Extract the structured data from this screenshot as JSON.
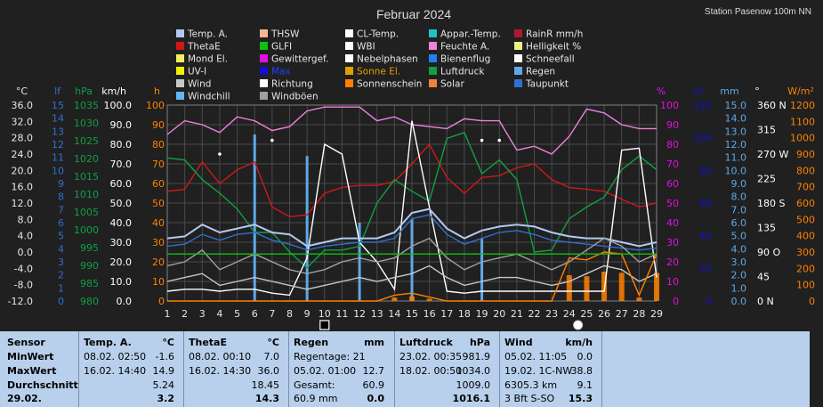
{
  "title": "Februar 2024",
  "station": "Station Pasenow  100m NN",
  "legend": [
    {
      "label": "Temp. A.",
      "color": "#b4c8f0"
    },
    {
      "label": "THSW",
      "color": "#f0b890"
    },
    {
      "label": "CL-Temp.",
      "color": "#ffffff"
    },
    {
      "label": "Appar.-Temp.",
      "color": "#20c0c0"
    },
    {
      "label": "RainR mm/h",
      "color": "#b01830"
    },
    {
      "label": "ThetaE",
      "color": "#d01818"
    },
    {
      "label": "GLFI",
      "color": "#10c010"
    },
    {
      "label": "WBI",
      "color": "#ffffff"
    },
    {
      "label": "Feuchte A.",
      "color": "#f080e0"
    },
    {
      "label": "Helligkeit %",
      "color": "#f0f080"
    },
    {
      "label": "Mond El.",
      "color": "#f0f060"
    },
    {
      "label": "Gewittergef.",
      "color": "#e010e0"
    },
    {
      "label": "Nebelphasen",
      "color": "#ffffff"
    },
    {
      "label": "Bienenflug",
      "color": "#2080f0"
    },
    {
      "label": "Schneefall",
      "color": "#ffffff"
    },
    {
      "label": "UV-I",
      "color": "#f0f000"
    },
    {
      "label": "Max",
      "color": "#1010d0"
    },
    {
      "label": "Sonne El.",
      "color": "#e0a000"
    },
    {
      "label": "Luftdruck",
      "color": "#10a040"
    },
    {
      "label": "Regen",
      "color": "#60a8e8"
    },
    {
      "label": "Wind",
      "color": "#c8c8c8"
    },
    {
      "label": "Richtung",
      "color": "#ffffff"
    },
    {
      "label": "Sonnenschein",
      "color": "#ff8000"
    },
    {
      "label": "Solar",
      "color": "#f08040"
    },
    {
      "label": "Taupunkt",
      "color": "#3070d0"
    },
    {
      "label": "Windchill",
      "color": "#60b8f0"
    },
    {
      "label": "Windböen",
      "color": "#a0a0a0"
    }
  ],
  "colors": {
    "temp": "#b4c8f0",
    "thetae": "#d01818",
    "pressure": "#10a040",
    "humidity": "#f080e0",
    "cl_temp": "#ffffff",
    "rain": "#60a8e8",
    "gust": "#a0a0a0",
    "wind": "#c8c8c8",
    "sunshine": "#ff8000",
    "dewpoint": "#3070d0",
    "glfi": "#10c010",
    "axis_hpa": "#10a040",
    "axis_km": "#ffffff",
    "axis_h": "#ff8000",
    "axis_pct": "#e010e0",
    "axis_rh": "#1010d0",
    "axis_mm": "#60a8e8",
    "axis_wm2": "#ff8000",
    "axis_lf": "#3070d0"
  },
  "chart_data": {
    "type": "line",
    "title": "Februar 2024",
    "x": [
      1,
      2,
      3,
      4,
      5,
      6,
      7,
      8,
      9,
      10,
      11,
      12,
      13,
      14,
      15,
      16,
      17,
      18,
      19,
      20,
      21,
      22,
      23,
      24,
      25,
      26,
      27,
      28,
      29
    ],
    "axes": {
      "celsius": {
        "label": "°C",
        "ticks": [
          "36.0",
          "32.0",
          "28.0",
          "24.0",
          "20.0",
          "16.0",
          "12.0",
          "8.0",
          "4.0",
          "0.0",
          "-4.0",
          "-8.0",
          "-12.0"
        ]
      },
      "lf": {
        "label": "lf",
        "ticks": [
          "15",
          "14",
          "13",
          "12",
          "11",
          "10",
          "9",
          "8",
          "7",
          "6",
          "5",
          "4",
          "3",
          "2",
          "1",
          "0"
        ]
      },
      "hpa": {
        "label": "hPa",
        "ticks": [
          "1035",
          "1030",
          "1025",
          "1020",
          "1015",
          "1010",
          "1005",
          "1000",
          "995",
          "990",
          "985",
          "980"
        ]
      },
      "kmh": {
        "label": "km/h",
        "ticks": [
          "100.0",
          "90.0",
          "80.0",
          "70.0",
          "60.0",
          "50.0",
          "40.0",
          "30.0",
          "20.0",
          "10.0",
          "0.0"
        ]
      },
      "h": {
        "label": "h",
        "ticks": [
          "100",
          "90",
          "80",
          "70",
          "60",
          "50",
          "40",
          "30",
          "20",
          "10",
          "0"
        ]
      },
      "pct": {
        "label": "%",
        "ticks": [
          "100",
          "90",
          "80",
          "70",
          "60",
          "50",
          "40",
          "30",
          "20",
          "10",
          "0"
        ]
      },
      "rh": {
        "label": "rh",
        "ticks": [
          "120",
          "100",
          "80",
          "60",
          "40",
          "20",
          "0"
        ]
      },
      "mm": {
        "label": "mm",
        "ticks": [
          "15.0",
          "14.0",
          "13.0",
          "12.0",
          "11.0",
          "10.0",
          "9.0",
          "8.0",
          "7.0",
          "6.0",
          "5.0",
          "4.0",
          "3.0",
          "2.0",
          "1.0",
          "0.0"
        ]
      },
      "deg": {
        "label": "°",
        "ticks": [
          "360 N",
          "315",
          "270 W",
          "225",
          "180 S",
          "135",
          "90 O",
          "45",
          "0   N"
        ]
      },
      "wm2": {
        "label": "W/m²",
        "ticks": [
          "1200",
          "1100",
          "1000",
          "900",
          "800",
          "700",
          "600",
          "500",
          "400",
          "300",
          "200",
          "100",
          "0"
        ]
      }
    },
    "ylim_h": [
      0,
      100
    ],
    "series": [
      {
        "name": "Feuchte A.",
        "key": "humidity",
        "values": [
          85,
          92,
          90,
          86,
          94,
          92,
          87,
          89,
          97,
          99,
          99,
          99,
          92,
          94,
          90,
          89,
          88,
          93,
          92,
          92,
          77,
          79,
          75,
          84,
          98,
          96,
          90,
          88,
          88
        ]
      },
      {
        "name": "ThetaE",
        "key": "thetae",
        "values": [
          56,
          57,
          71,
          60,
          67,
          71,
          48,
          43,
          44,
          55,
          58,
          59,
          59,
          61,
          70,
          80,
          63,
          55,
          63,
          64,
          68,
          70,
          62,
          58,
          57,
          56,
          52,
          48,
          50
        ]
      },
      {
        "name": "Luftdruck",
        "key": "pressure",
        "values": [
          73,
          72,
          62,
          55,
          47,
          35,
          35,
          25,
          17,
          26,
          26,
          28,
          50,
          62,
          56,
          51,
          83,
          86,
          65,
          72,
          62,
          25,
          26,
          42,
          48,
          53,
          67,
          74,
          67
        ]
      },
      {
        "name": "CL-Temp.",
        "key": "cl_temp",
        "values": [
          5,
          6,
          6,
          5,
          6,
          6,
          4,
          3,
          22,
          80,
          75,
          30,
          20,
          6,
          92,
          48,
          5,
          4,
          5,
          5,
          5,
          5,
          5,
          5,
          5,
          5,
          77,
          78,
          12
        ]
      },
      {
        "name": "Temp. A.",
        "key": "temp",
        "values": [
          32,
          33,
          39,
          35,
          37,
          39,
          35,
          34,
          28,
          30,
          32,
          32,
          32,
          35,
          45,
          47,
          37,
          32,
          36,
          38,
          39,
          38,
          35,
          33,
          32,
          32,
          30,
          28,
          30
        ]
      },
      {
        "name": "Taupunkt",
        "key": "dewpoint",
        "values": [
          28,
          29,
          34,
          31,
          34,
          35,
          31,
          29,
          26,
          28,
          29,
          30,
          30,
          32,
          42,
          44,
          34,
          29,
          32,
          35,
          36,
          34,
          31,
          30,
          29,
          28,
          27,
          26,
          27
        ]
      },
      {
        "name": "Wind",
        "key": "wind",
        "values": [
          10,
          12,
          14,
          8,
          10,
          12,
          10,
          8,
          6,
          8,
          10,
          12,
          10,
          12,
          14,
          18,
          12,
          8,
          10,
          12,
          12,
          10,
          8,
          10,
          14,
          18,
          16,
          10,
          14
        ]
      },
      {
        "name": "Windböen",
        "key": "gust",
        "values": [
          18,
          20,
          26,
          16,
          20,
          24,
          20,
          16,
          14,
          16,
          20,
          22,
          20,
          22,
          28,
          32,
          22,
          16,
          20,
          22,
          24,
          20,
          16,
          20,
          26,
          32,
          28,
          20,
          24
        ]
      },
      {
        "name": "Sonnenschein",
        "key": "sunshine",
        "values": [
          0,
          0,
          0,
          0,
          0,
          0,
          0,
          0,
          0,
          0,
          0,
          0,
          0,
          3,
          4,
          2,
          0,
          0,
          0,
          0,
          0,
          0,
          0,
          22,
          21,
          25,
          24,
          3,
          24
        ]
      },
      {
        "name": "GLFI",
        "key": "glfi",
        "values": [
          24,
          24,
          24,
          24,
          24,
          24,
          24,
          24,
          24,
          24,
          24,
          24,
          24,
          24,
          24,
          24,
          24,
          24,
          24,
          24,
          24,
          24,
          24,
          24,
          24,
          24,
          24,
          24,
          24
        ]
      }
    ],
    "rain_bars": [
      0,
      0,
      0,
      0,
      0,
      85,
      0,
      0,
      74,
      0,
      0,
      40,
      0,
      0,
      42,
      0,
      0,
      0,
      32,
      0,
      0,
      0,
      0,
      0,
      0,
      0,
      0,
      0,
      0
    ],
    "snow_dots": [
      0,
      0,
      0,
      75,
      0,
      0,
      82,
      0,
      0,
      0,
      0,
      0,
      0,
      0,
      0,
      0,
      0,
      0,
      82,
      82,
      0,
      0,
      0,
      0,
      0,
      0,
      0,
      0,
      0
    ],
    "moon": [
      {
        "day": 10,
        "phase": "new"
      },
      {
        "day": 24.5,
        "phase": "full"
      }
    ],
    "xlabel": "",
    "grid": true
  },
  "table": {
    "labels": {
      "sensor": "Sensor",
      "min": "MinWert",
      "max": "MaxWert",
      "avg": "Durchschnitt",
      "date": "29.02."
    },
    "cols": [
      {
        "name": "Temp. A.",
        "unit": "°C",
        "min_date": "08.02.  02:50",
        "min_val": "-1.6",
        "max_date": "16.02.  14:40",
        "max_val": "14.9",
        "avg_val": "5.24",
        "cur_val": "3.2"
      },
      {
        "name": "ThetaE",
        "unit": "°C",
        "min_date": "08.02.  00:10",
        "min_val": "7.0",
        "max_date": "16.02.  14:30",
        "max_val": "36.0",
        "avg_val": "18.45",
        "cur_val": "14.3"
      },
      {
        "name": "Regen",
        "unit": "mm",
        "min_date": "Regentage: 21",
        "min_val": "",
        "max_date": "05.02.  01:00",
        "max_val": "12.7",
        "avg_date": "Gesamt:",
        "avg_val": "60.9",
        "cur_date": "60.9 mm",
        "cur_val": "0.0"
      },
      {
        "name": "Luftdruck",
        "unit": "hPa",
        "min_date": "23.02.  00:35",
        "min_val": "981.9",
        "max_date": "18.02.  00:50",
        "max_val": "1034.0",
        "avg_val": "1009.0",
        "cur_val": "1016.1"
      },
      {
        "name": "Wind",
        "unit": "km/h",
        "min_date": "05.02.  11:05",
        "min_val": "0.0",
        "max_date": "19.02.  1C-NW",
        "max_val": "38.8",
        "avg_date": "6305.3 km",
        "avg_val": "9.1",
        "cur_date": "3 Bft S-SO",
        "cur_val": "15.3"
      }
    ]
  }
}
